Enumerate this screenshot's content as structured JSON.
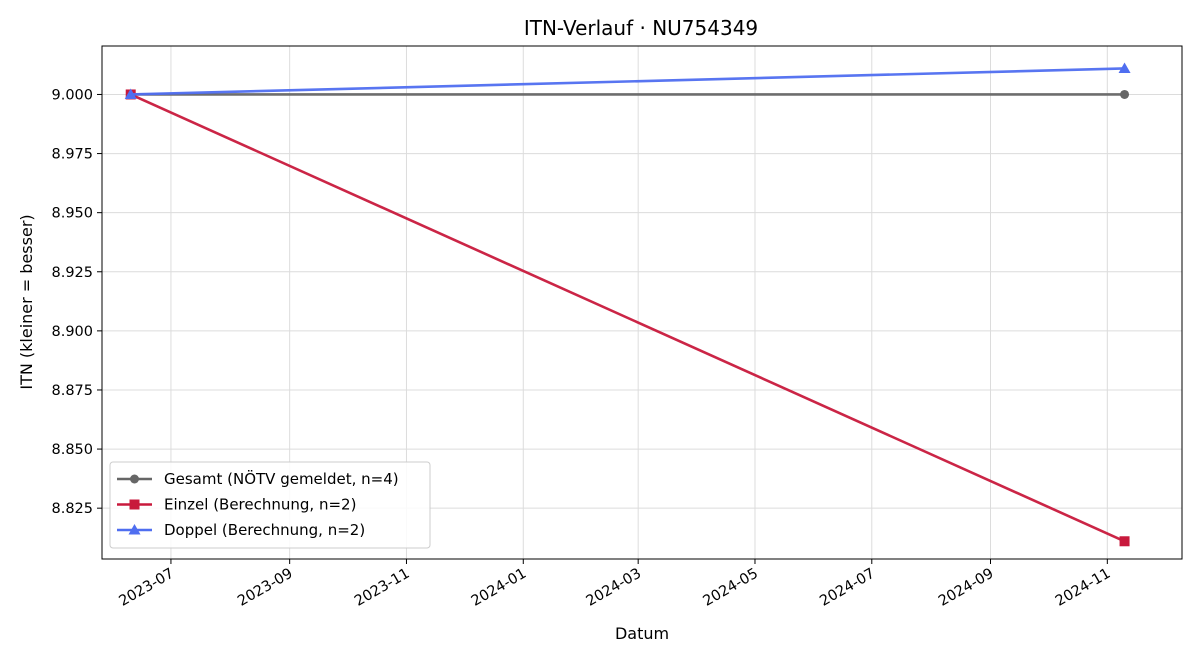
{
  "chart_data": {
    "type": "line",
    "title": "ITN-Verlauf · NU754349",
    "xlabel": "Datum",
    "ylabel": "ITN  (kleiner = besser)",
    "x_axis_type": "date",
    "x_ticks": [
      "2023-07",
      "2023-09",
      "2023-11",
      "2024-01",
      "2024-03",
      "2024-05",
      "2024-07",
      "2024-09",
      "2024-11"
    ],
    "y_ticks": [
      "8.825",
      "8.850",
      "8.875",
      "8.900",
      "8.925",
      "8.950",
      "8.975",
      "9.000"
    ],
    "xlim": [
      "2023-05-26",
      "2024-12-10"
    ],
    "ylim": [
      8.8035,
      9.0205
    ],
    "grid": true,
    "legend_position": "lower-left",
    "series": [
      {
        "name": "Gesamt (NÖTV gemeldet, n=4)",
        "color": "#666666",
        "marker": "circle",
        "points": [
          {
            "x": "2023-06-10",
            "y": 9.0
          },
          {
            "x": "2024-11-10",
            "y": 9.0
          }
        ]
      },
      {
        "name": "Einzel (Berechnung, n=2)",
        "color": "#c8193c",
        "marker": "square",
        "points": [
          {
            "x": "2023-06-10",
            "y": 9.0
          },
          {
            "x": "2024-11-10",
            "y": 8.811
          }
        ]
      },
      {
        "name": "Doppel (Berechnung, n=2)",
        "color": "#4f6ef0",
        "marker": "triangle",
        "points": [
          {
            "x": "2023-06-10",
            "y": 9.0
          },
          {
            "x": "2024-11-10",
            "y": 9.011
          }
        ]
      }
    ]
  }
}
